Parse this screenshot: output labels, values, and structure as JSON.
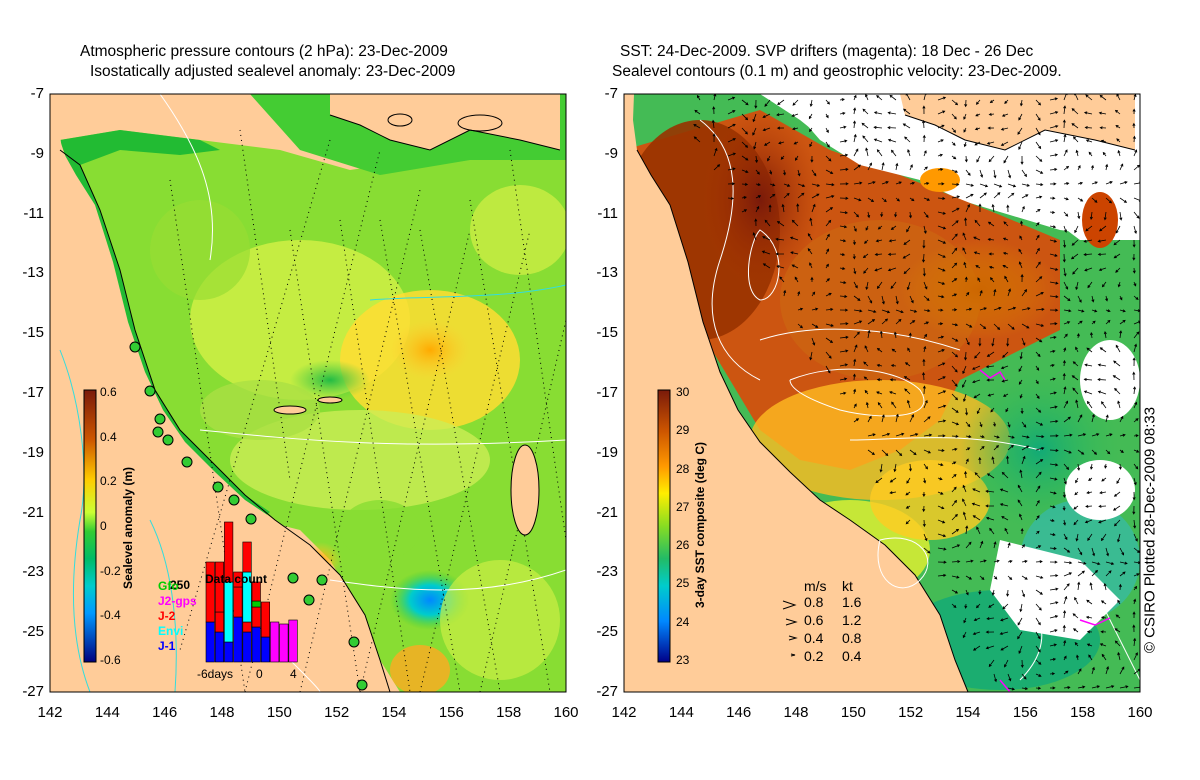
{
  "left_panel": {
    "title_line1": "Atmospheric pressure contours (2 hPa): 23-Dec-2009",
    "title_line2": "Isostatically adjusted sealevel anomaly: 23-Dec-2009",
    "colorbar_label": "Sealevel anomaly (m)",
    "colorbar_ticks": [
      "0.6",
      "0.4",
      "0.2",
      "0",
      "-0.2",
      "-0.4",
      "-0.6"
    ],
    "inset": {
      "title": "Data count",
      "max_label": "250",
      "xlabel_left": "-6days",
      "xlabel_mid": "0",
      "xlabel_right": "4",
      "legend": [
        {
          "label": "Gfo",
          "color": "#00cc00"
        },
        {
          "label": "J2-gps",
          "color": "#ff00ff"
        },
        {
          "label": "J-2",
          "color": "#ff0000"
        },
        {
          "label": "Envi",
          "color": "#00ffff"
        },
        {
          "label": "J-1",
          "color": "#0000ff"
        }
      ]
    }
  },
  "right_panel": {
    "title_line1": "SST: 24-Dec-2009. SVP drifters (magenta): 18 Dec - 26 Dec",
    "title_line2": "Sealevel contours (0.1 m) and geostrophic velocity: 23-Dec-2009.",
    "colorbar_label": "3-day SST composite (deg C)",
    "colorbar_ticks": [
      "30",
      "29",
      "28",
      "27",
      "26",
      "25",
      "24",
      "23"
    ],
    "speed_legend": {
      "header_ms": "m/s",
      "header_kt": "kt",
      "rows": [
        {
          "ms": "0.8",
          "kt": "1.6"
        },
        {
          "ms": "0.6",
          "kt": "1.2"
        },
        {
          "ms": "0.4",
          "kt": "0.8"
        },
        {
          "ms": "0.2",
          "kt": "0.4"
        }
      ]
    }
  },
  "axes": {
    "lat_ticks": [
      "-7",
      "-9",
      "-11",
      "-13",
      "-15",
      "-17",
      "-19",
      "-21",
      "-23",
      "-25",
      "-27"
    ],
    "lon_ticks": [
      "142",
      "144",
      "146",
      "148",
      "150",
      "152",
      "154",
      "156",
      "158",
      "160"
    ]
  },
  "copyright": "© CSIRO Plotted 28-Dec-2009 08:33",
  "colors": {
    "land": "#ffcc99",
    "sla_mid": "#33cc33",
    "sst_warm": "#993300"
  }
}
